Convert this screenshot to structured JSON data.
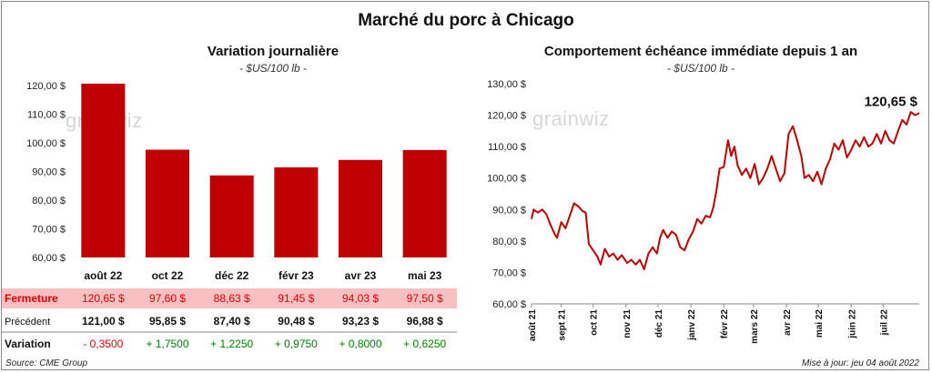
{
  "main_title": "Marché du porc à Chicago",
  "watermark": "grainwiz",
  "left": {
    "title": "Variation journalière",
    "subtitle": "- $US/100 lb -"
  },
  "right": {
    "title": "Comportement échéance immédiate depuis 1 an",
    "subtitle": "- $US/100 lb -",
    "last_label": "120,65 $"
  },
  "table": {
    "rows": [
      {
        "label": "Fermeture",
        "cells": [
          "120,65  $",
          "97,60  $",
          "88,63  $",
          "91,45  $",
          "94,03  $",
          "97,50  $"
        ]
      },
      {
        "label": "Précédent",
        "cells": [
          "121,00  $",
          "95,85  $",
          "87,40  $",
          "90,48  $",
          "93,23  $",
          "96,88  $"
        ]
      },
      {
        "label": "Variation",
        "cells": [
          "- 0,3500",
          "+ 1,7500",
          "+ 1,2250",
          "+ 0,9750",
          "+ 0,8000",
          "+ 0,6250"
        ]
      }
    ]
  },
  "footer": {
    "source": "Source: CME Group",
    "updated": "Mise à jour: jeu 04 août 2022"
  },
  "colors": {
    "bar": "#C00000",
    "line": "#C00000",
    "highlight": "#F8C0C0",
    "positive": "#008000",
    "negative": "#E00000"
  },
  "chart_data": [
    {
      "type": "bar",
      "title": "Variation journalière",
      "subtitle": "- $US/100 lb -",
      "categories": [
        "août 22",
        "oct 22",
        "déc 22",
        "févr 23",
        "avr 23",
        "mai 23"
      ],
      "values": [
        120.65,
        97.6,
        88.63,
        91.45,
        94.03,
        97.5
      ],
      "ylim": [
        60,
        120
      ],
      "yticks": [
        "60,00 $",
        "70,00 $",
        "80,00 $",
        "90,00 $",
        "100,00 $",
        "110,00 $",
        "120,00 $"
      ],
      "grid": false
    },
    {
      "type": "line",
      "title": "Comportement échéance immédiate depuis 1 an",
      "subtitle": "- $US/100 lb -",
      "ylim": [
        60,
        130
      ],
      "yticks": [
        "60,00 $",
        "70,00 $",
        "80,00 $",
        "90,00 $",
        "100,00 $",
        "110,00 $",
        "120,00 $",
        "130,00 $"
      ],
      "xticks": [
        "août 21",
        "sept 21",
        "oct 21",
        "nov 21",
        "déc 21",
        "janv 22",
        "févr 22",
        "mars 22",
        "avr 22",
        "mai 22",
        "juin 22",
        "juil 22"
      ],
      "x_range": [
        "2021-08-04",
        "2022-08-04"
      ],
      "grid": false,
      "series": [
        {
          "points": [
            [
              "2021-08-04",
              87.0
            ],
            [
              "2021-08-06",
              90.0
            ],
            [
              "2021-08-10",
              89.0
            ],
            [
              "2021-08-14",
              90.0
            ],
            [
              "2021-08-18",
              88.5
            ],
            [
              "2021-08-22",
              85.0
            ],
            [
              "2021-08-26",
              82.0
            ],
            [
              "2021-08-28",
              81.0
            ],
            [
              "2021-09-01",
              86.0
            ],
            [
              "2021-09-05",
              84.0
            ],
            [
              "2021-09-09",
              88.0
            ],
            [
              "2021-09-13",
              92.0
            ],
            [
              "2021-09-17",
              91.0
            ],
            [
              "2021-09-21",
              89.5
            ],
            [
              "2021-09-24",
              89.0
            ],
            [
              "2021-09-27",
              79.0
            ],
            [
              "2021-10-01",
              77.0
            ],
            [
              "2021-10-05",
              75.0
            ],
            [
              "2021-10-08",
              72.5
            ],
            [
              "2021-10-12",
              77.5
            ],
            [
              "2021-10-16",
              75.0
            ],
            [
              "2021-10-20",
              76.0
            ],
            [
              "2021-10-24",
              74.0
            ],
            [
              "2021-10-28",
              75.5
            ],
            [
              "2021-11-02",
              73.0
            ],
            [
              "2021-11-06",
              74.0
            ],
            [
              "2021-11-10",
              72.5
            ],
            [
              "2021-11-14",
              74.0
            ],
            [
              "2021-11-18",
              71.0
            ],
            [
              "2021-11-22",
              76.0
            ],
            [
              "2021-11-26",
              78.0
            ],
            [
              "2021-11-30",
              76.0
            ],
            [
              "2021-12-03",
              81.0
            ],
            [
              "2021-12-06",
              83.5
            ],
            [
              "2021-12-10",
              81.0
            ],
            [
              "2021-12-14",
              83.0
            ],
            [
              "2021-12-18",
              82.0
            ],
            [
              "2021-12-22",
              78.0
            ],
            [
              "2021-12-26",
              77.0
            ],
            [
              "2021-12-30",
              80.5
            ],
            [
              "2022-01-03",
              83.0
            ],
            [
              "2022-01-07",
              87.0
            ],
            [
              "2022-01-11",
              85.5
            ],
            [
              "2022-01-15",
              88.0
            ],
            [
              "2022-01-19",
              87.5
            ],
            [
              "2022-01-22",
              90.5
            ],
            [
              "2022-01-25",
              96.0
            ],
            [
              "2022-01-28",
              103.0
            ],
            [
              "2022-02-01",
              103.5
            ],
            [
              "2022-02-05",
              112.0
            ],
            [
              "2022-02-08",
              107.0
            ],
            [
              "2022-02-11",
              110.0
            ],
            [
              "2022-02-14",
              104.0
            ],
            [
              "2022-02-18",
              101.0
            ],
            [
              "2022-02-22",
              103.0
            ],
            [
              "2022-02-26",
              100.0
            ],
            [
              "2022-03-02",
              104.5
            ],
            [
              "2022-03-06",
              98.0
            ],
            [
              "2022-03-10",
              100.0
            ],
            [
              "2022-03-14",
              103.0
            ],
            [
              "2022-03-18",
              107.0
            ],
            [
              "2022-03-22",
              103.0
            ],
            [
              "2022-03-26",
              99.0
            ],
            [
              "2022-03-30",
              101.5
            ],
            [
              "2022-04-03",
              114.0
            ],
            [
              "2022-04-07",
              116.5
            ],
            [
              "2022-04-11",
              112.0
            ],
            [
              "2022-04-15",
              107.0
            ],
            [
              "2022-04-18",
              100.0
            ],
            [
              "2022-04-22",
              101.0
            ],
            [
              "2022-04-26",
              99.0
            ],
            [
              "2022-04-30",
              102.0
            ],
            [
              "2022-05-04",
              98.0
            ],
            [
              "2022-05-08",
              103.0
            ],
            [
              "2022-05-12",
              106.0
            ],
            [
              "2022-05-16",
              111.0
            ],
            [
              "2022-05-20",
              109.0
            ],
            [
              "2022-05-24",
              112.0
            ],
            [
              "2022-05-28",
              106.5
            ],
            [
              "2022-06-01",
              109.0
            ],
            [
              "2022-06-05",
              112.0
            ],
            [
              "2022-06-09",
              110.0
            ],
            [
              "2022-06-13",
              113.0
            ],
            [
              "2022-06-17",
              110.0
            ],
            [
              "2022-06-21",
              111.0
            ],
            [
              "2022-06-25",
              114.0
            ],
            [
              "2022-06-29",
              111.0
            ],
            [
              "2022-07-03",
              115.0
            ],
            [
              "2022-07-07",
              112.0
            ],
            [
              "2022-07-11",
              111.0
            ],
            [
              "2022-07-15",
              115.0
            ],
            [
              "2022-07-19",
              118.5
            ],
            [
              "2022-07-23",
              117.0
            ],
            [
              "2022-07-27",
              121.0
            ],
            [
              "2022-07-31",
              120.0
            ],
            [
              "2022-08-04",
              120.65
            ]
          ]
        }
      ]
    }
  ]
}
